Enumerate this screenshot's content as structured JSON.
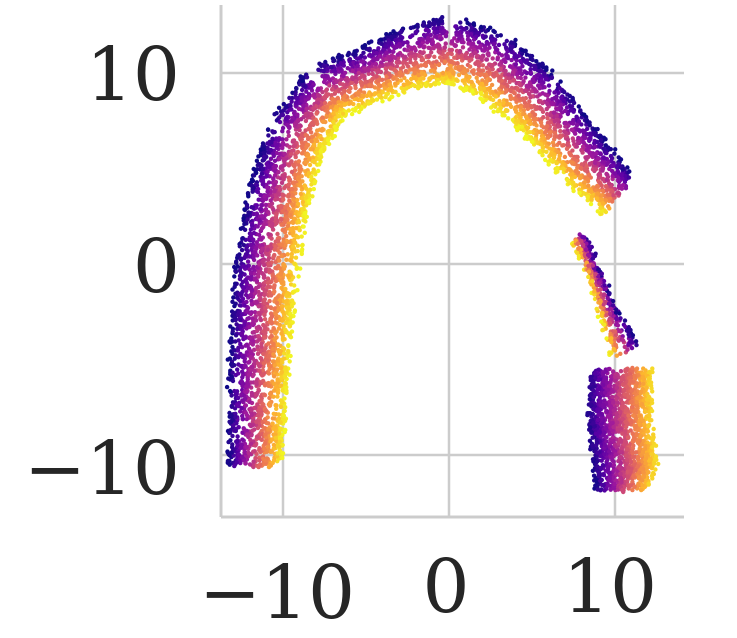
{
  "chart_data": {
    "type": "scatter",
    "title": "",
    "xlabel": "",
    "ylabel": "",
    "xlim": [
      -14,
      14
    ],
    "ylim": [
      -13.2,
      13.4
    ],
    "xticks": [
      -10,
      0,
      10
    ],
    "yticks": [
      -10,
      0,
      10
    ],
    "x_tick_labels": [
      "−10",
      "0",
      "10"
    ],
    "y_tick_labels": [
      "−10",
      "0",
      "10"
    ],
    "grid": true,
    "legend": "none",
    "colormap": "plasma",
    "colormap_stops": [
      "#0d0887",
      "#5c01a6",
      "#9c179e",
      "#cc4778",
      "#ed7953",
      "#fdb42f",
      "#f0f921"
    ],
    "series": [
      {
        "shape": "arch",
        "description_points_x_y_width": [
          [
            -11.7,
            -10.6,
            3.2
          ],
          [
            -11.5,
            -6.0,
            3.6
          ],
          [
            -11.1,
            -1.0,
            3.8
          ],
          [
            -10.4,
            3.0,
            3.8
          ],
          [
            -9.2,
            6.6,
            3.6
          ],
          [
            -7.4,
            9.0,
            3.2
          ],
          [
            -5.0,
            9.8,
            3.0
          ],
          [
            -2.2,
            10.8,
            3.4
          ],
          [
            0.0,
            11.2,
            3.6
          ],
          [
            2.6,
            10.4,
            3.6
          ],
          [
            5.4,
            8.4,
            3.6
          ],
          [
            8.2,
            5.4,
            3.2
          ],
          [
            10.2,
            3.6,
            2.8
          ]
        ]
      },
      {
        "shape": "bridge",
        "description_points_x_y_width": [
          [
            7.8,
            1.4,
            1.0
          ],
          [
            8.8,
            -0.6,
            0.8
          ],
          [
            9.6,
            -2.6,
            1.2
          ],
          [
            10.6,
            -4.6,
            1.8
          ]
        ]
      },
      {
        "shape": "right-leg",
        "description_points_x_y_width": [
          [
            10.4,
            -5.6,
            3.6
          ],
          [
            10.3,
            -8.2,
            3.8
          ],
          [
            10.6,
            -10.6,
            3.8
          ],
          [
            10.4,
            -11.8,
            3.2
          ]
        ]
      }
    ]
  }
}
